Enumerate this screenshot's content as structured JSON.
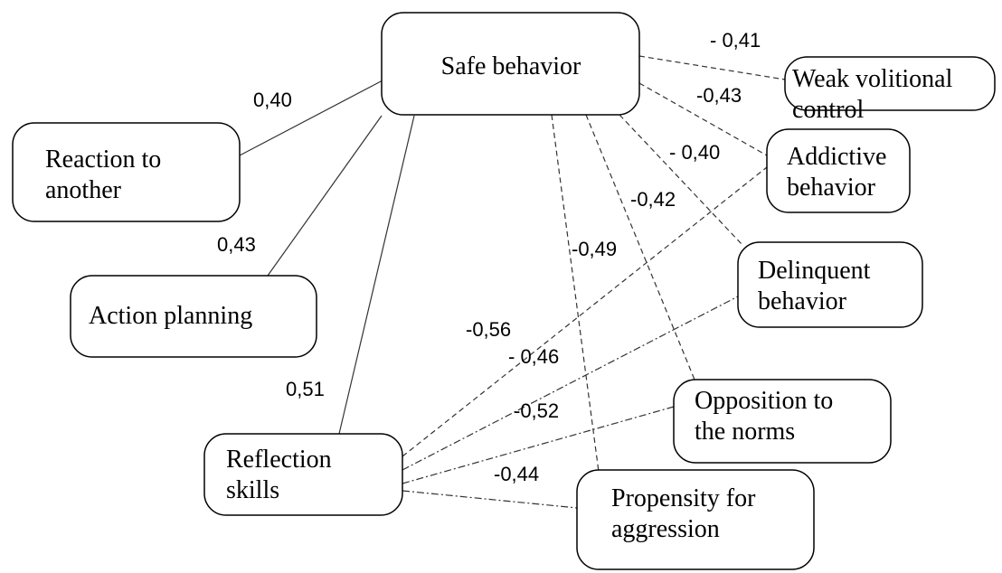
{
  "nodes": [
    {
      "lines": [
        "Safe behavior"
      ]
    },
    {
      "lines": [
        "Weak volitional",
        "control"
      ]
    },
    {
      "lines": [
        "Addictive",
        "behavior"
      ]
    },
    {
      "lines": [
        "Delinquent",
        "behavior"
      ]
    },
    {
      "lines": [
        "Opposition to",
        "the norms"
      ]
    },
    {
      "lines": [
        "Propensity for",
        "aggression"
      ]
    },
    {
      "lines": [
        "Reflection",
        "skills"
      ]
    },
    {
      "lines": [
        "Action planning"
      ]
    },
    {
      "lines": [
        "Reaction to",
        "another"
      ]
    }
  ],
  "edges": [
    "0,40",
    "0,43",
    "0,51",
    "- 0,41",
    "-0,43",
    "- 0,40",
    "-0,42",
    "-0,49",
    "-0,56",
    "- 0,46",
    "-0,52",
    "-0,44"
  ]
}
